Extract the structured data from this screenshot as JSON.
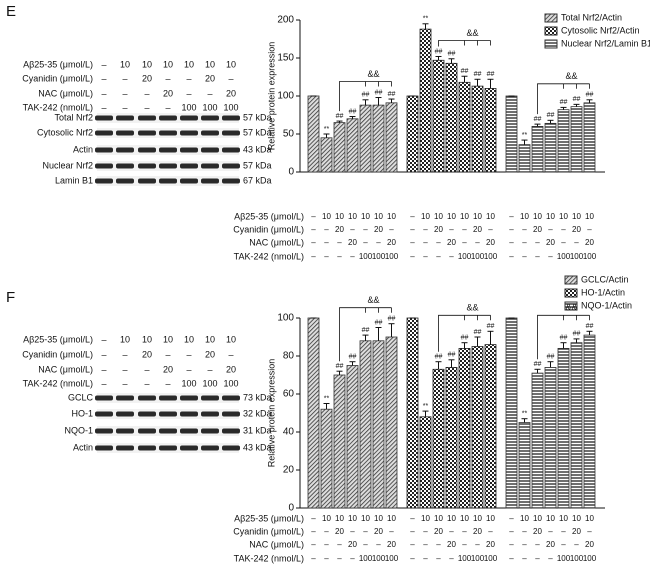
{
  "panels": [
    "E",
    "F"
  ],
  "blots": [
    {
      "treatments": [
        {
          "label": "Aβ25-35 (μmol/L)",
          "values": [
            "–",
            "10",
            "10",
            "10",
            "10",
            "10",
            "10"
          ]
        },
        {
          "label": "Cyanidin (μmol/L)",
          "values": [
            "–",
            "–",
            "20",
            "–",
            "–",
            "20",
            "–"
          ]
        },
        {
          "label": "NAC (μmol/L)",
          "values": [
            "–",
            "–",
            "–",
            "20",
            "–",
            "–",
            "20"
          ]
        },
        {
          "label": "TAK-242 (nmol/L)",
          "values": [
            "–",
            "–",
            "–",
            "–",
            "100",
            "100",
            "100"
          ]
        }
      ],
      "bands": [
        {
          "name": "Total Nrf2",
          "size": "57 kDa"
        },
        {
          "name": "Cytosolic Nrf2",
          "size": "57 kDa"
        },
        {
          "name": "Actin",
          "size": "43 kDa"
        },
        {
          "name": "Nuclear Nrf2",
          "size": "57 kDa"
        },
        {
          "name": "Lamin B1",
          "size": "67 kDa"
        }
      ]
    },
    {
      "treatments": [
        {
          "label": "Aβ25-35 (μmol/L)",
          "values": [
            "–",
            "10",
            "10",
            "10",
            "10",
            "10",
            "10"
          ]
        },
        {
          "label": "Cyanidin (μmol/L)",
          "values": [
            "–",
            "–",
            "20",
            "–",
            "–",
            "20",
            "–"
          ]
        },
        {
          "label": "NAC (μmol/L)",
          "values": [
            "–",
            "–",
            "–",
            "20",
            "–",
            "–",
            "20"
          ]
        },
        {
          "label": "TAK-242 (nmol/L)",
          "values": [
            "–",
            "–",
            "–",
            "–",
            "100",
            "100",
            "100"
          ]
        }
      ],
      "bands": [
        {
          "name": "GCLC",
          "size": "73 kDa"
        },
        {
          "name": "HO-1",
          "size": "32 kDa"
        },
        {
          "name": "NQO-1",
          "size": "31 kDa"
        },
        {
          "name": "Actin",
          "size": "43 kDa"
        }
      ]
    }
  ],
  "chart_data": [
    {
      "type": "bar",
      "y_label": "Relative protein expression",
      "ylim": [
        0,
        200
      ],
      "yticks": [
        0,
        50,
        100,
        150,
        200
      ],
      "treatments": [
        {
          "label": "Aβ25-35 (μmol/L)",
          "values": [
            "–",
            "10",
            "10",
            "10",
            "10",
            "10",
            "10"
          ]
        },
        {
          "label": "Cyanidin (μmol/L)",
          "values": [
            "–",
            "–",
            "20",
            "–",
            "–",
            "20",
            "–"
          ]
        },
        {
          "label": "NAC (μmol/L)",
          "values": [
            "–",
            "–",
            "–",
            "20",
            "–",
            "–",
            "20"
          ]
        },
        {
          "label": "TAK-242 (nmol/L)",
          "values": [
            "–",
            "–",
            "–",
            "–",
            "100",
            "100",
            "100"
          ]
        }
      ],
      "series": [
        {
          "name": "Total Nrf2/Actin",
          "color": "#333333",
          "pattern": "hatch",
          "values": [
            100,
            45,
            65,
            70,
            88,
            88,
            91
          ],
          "errors": [
            0,
            5,
            2,
            3,
            7,
            10,
            5
          ],
          "sig_labels": [
            null,
            "**",
            "##",
            "##",
            "##",
            "##",
            "##"
          ],
          "bracket_label": "&&"
        },
        {
          "name": "Cytosolic Nrf2/Actin",
          "color": "#222222",
          "pattern": "checker",
          "values": [
            100,
            188,
            147,
            143,
            118,
            113,
            110
          ],
          "errors": [
            0,
            7,
            5,
            6,
            8,
            9,
            12
          ],
          "sig_labels": [
            null,
            "**",
            "##",
            "##",
            "##",
            "##",
            "##"
          ],
          "bracket_label": "&&"
        },
        {
          "name": "Nuclear Nrf2/Lamin B1",
          "color": "#333333",
          "pattern": "stripes",
          "values": [
            100,
            36,
            60,
            64,
            82,
            86,
            91
          ],
          "errors": [
            0,
            6,
            3,
            4,
            3,
            3,
            4
          ],
          "sig_labels": [
            null,
            "**",
            "##",
            "##",
            "##",
            "##",
            "##"
          ],
          "bracket_label": "&&"
        }
      ]
    },
    {
      "type": "bar",
      "y_label": "Relative protein expression",
      "ylim": [
        0,
        100
      ],
      "yticks": [
        0,
        20,
        40,
        60,
        80,
        100
      ],
      "treatments": [
        {
          "label": "Aβ25-35 (μmol/L)",
          "values": [
            "–",
            "10",
            "10",
            "10",
            "10",
            "10",
            "10"
          ]
        },
        {
          "label": "Cyanidin (μmol/L)",
          "values": [
            "–",
            "–",
            "20",
            "–",
            "–",
            "20",
            "–"
          ]
        },
        {
          "label": "NAC (μmol/L)",
          "values": [
            "–",
            "–",
            "–",
            "20",
            "–",
            "–",
            "20"
          ]
        },
        {
          "label": "TAK-242 (nmol/L)",
          "values": [
            "–",
            "–",
            "–",
            "–",
            "100",
            "100",
            "100"
          ]
        }
      ],
      "series": [
        {
          "name": "GCLC/Actin",
          "color": "#333333",
          "pattern": "hatch",
          "values": [
            100,
            52,
            70,
            75,
            88,
            88,
            90
          ],
          "errors": [
            0,
            3,
            2,
            2,
            3,
            7,
            7
          ],
          "sig_labels": [
            null,
            "**",
            "##",
            "##",
            "##",
            "##",
            "##"
          ],
          "bracket_label": "&&"
        },
        {
          "name": "HO-1/Actin",
          "color": "#222222",
          "pattern": "checker",
          "values": [
            100,
            48,
            73,
            74,
            84,
            85,
            86
          ],
          "errors": [
            0,
            3,
            4,
            4,
            3,
            5,
            7
          ],
          "sig_labels": [
            null,
            "**",
            "##",
            "##",
            "##",
            "##",
            "##"
          ],
          "bracket_label": "&&"
        },
        {
          "name": "NQO-1/Actin",
          "color": "#333333",
          "pattern": "stripes",
          "values": [
            100,
            45,
            71,
            74,
            84,
            87,
            91
          ],
          "errors": [
            0,
            2,
            2,
            3,
            3,
            2,
            2
          ],
          "sig_labels": [
            null,
            "**",
            "##",
            "##",
            "##",
            "##",
            "##"
          ],
          "bracket_label": "&&"
        }
      ]
    }
  ]
}
